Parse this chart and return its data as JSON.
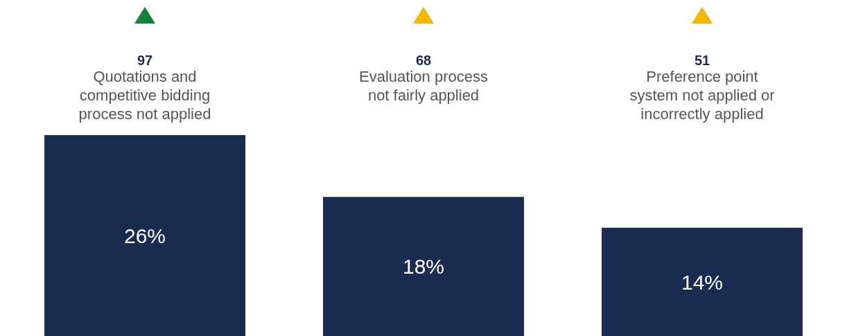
{
  "chart_data": {
    "type": "bar",
    "categories": [
      "Quotations and competitive bidding process not applied",
      "Evaluation process not fairly applied",
      "Preference point system not applied or incorrectly applied"
    ],
    "values": [
      26,
      18,
      14
    ],
    "color": "#1a2b52",
    "data_labels": true,
    "value_labels": [
      "26%",
      "18%",
      "14%"
    ],
    "annotations": [
      "97",
      "68",
      "51"
    ]
  }
}
